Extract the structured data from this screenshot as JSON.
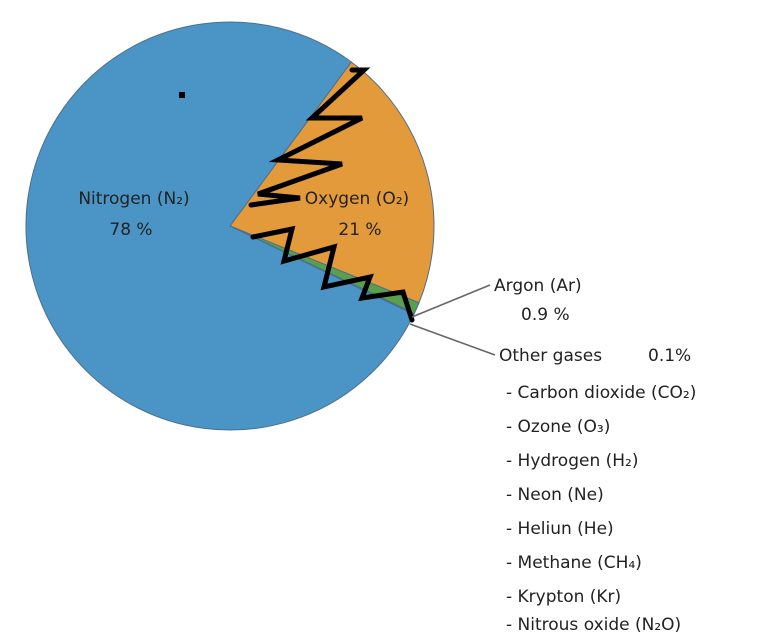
{
  "chart_data": {
    "type": "pie",
    "title": "",
    "slices": [
      {
        "key": "nitrogen",
        "label": "Nitrogen (N₂)",
        "value": 78,
        "value_label": "78 %",
        "color": "#4a95c6"
      },
      {
        "key": "oxygen",
        "label": "Oxygen (O₂)",
        "value": 21,
        "value_label": "21 %",
        "color": "#e29a3a"
      },
      {
        "key": "argon",
        "label": "Argon (Ar)",
        "value": 0.9,
        "value_label": "0.9 %",
        "color": "#5aa04c"
      },
      {
        "key": "other",
        "label": "Other gases",
        "value": 0.1,
        "value_label": "0.1%",
        "color": "#3a5f8a"
      }
    ],
    "other_gases": [
      "- Carbon dioxide (CO₂)",
      "- Ozone (O₃)",
      "- Hydrogen (H₂)",
      "- Neon (Ne)",
      "- Heliun (He)",
      "- Methane (CH₄)",
      "- Krypton (Kr)",
      "- Nitrous oxide (N₂O)"
    ],
    "legend": "none"
  }
}
